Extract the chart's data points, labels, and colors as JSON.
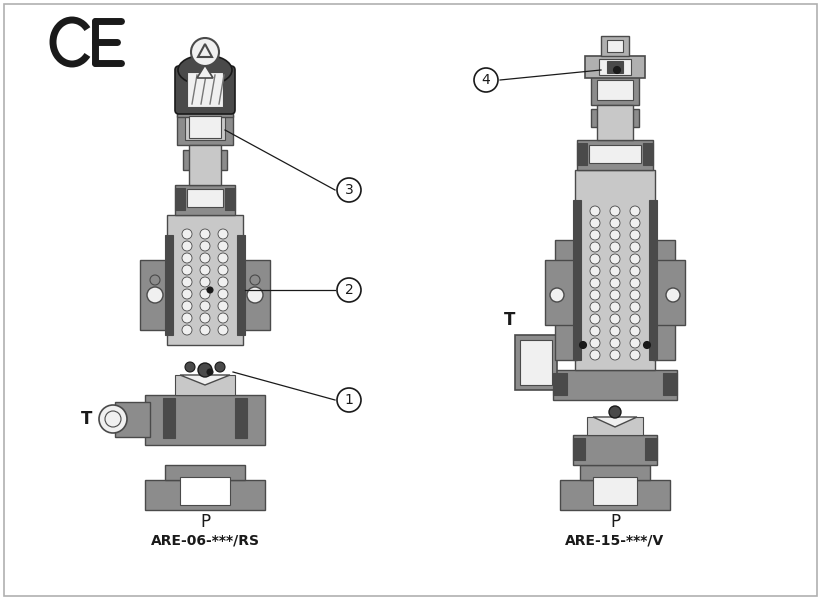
{
  "bg_color": "#ffffff",
  "border_color": "#b0b0b0",
  "valve1_label": "ARE-06-***/RS",
  "valve2_label": "ARE-15-***/V",
  "valve1_P": "P",
  "valve2_P": "P",
  "valve1_T": "T",
  "valve2_T": "T",
  "annotation1": "1",
  "annotation2": "2",
  "annotation3": "3",
  "annotation4": "4",
  "gray_dark": "#4a4a4a",
  "gray_mid": "#777777",
  "gray_body": "#8c8c8c",
  "gray_light": "#b0b0b0",
  "gray_lighter": "#d0d0d0",
  "gray_inner": "#c8c8c8",
  "black": "#1a1a1a",
  "white": "#ffffff",
  "near_white": "#f0f0f0"
}
